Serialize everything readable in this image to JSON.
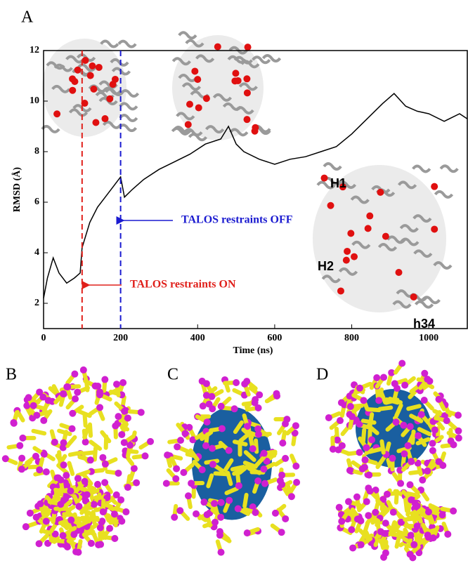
{
  "chart_data": {
    "type": "line",
    "panel_labels": [
      "A",
      "B",
      "C",
      "D"
    ],
    "xlabel": "Time   (ns)",
    "ylabel": "RMSD (Å)",
    "x": [
      0,
      10,
      25,
      40,
      60,
      80,
      95,
      100,
      120,
      140,
      160,
      180,
      200,
      210,
      230,
      260,
      300,
      340,
      380,
      420,
      460,
      480,
      500,
      520,
      560,
      600,
      640,
      680,
      720,
      760,
      800,
      840,
      880,
      910,
      940,
      970,
      1000,
      1040,
      1080,
      1100
    ],
    "values": [
      2.2,
      3.0,
      3.8,
      3.2,
      2.8,
      3.0,
      3.2,
      4.2,
      5.2,
      5.8,
      6.2,
      6.6,
      7.0,
      6.2,
      6.5,
      6.9,
      7.3,
      7.6,
      7.9,
      8.3,
      8.5,
      9.0,
      8.3,
      8.0,
      7.7,
      7.5,
      7.7,
      7.8,
      8.0,
      8.2,
      8.7,
      9.3,
      9.9,
      10.3,
      9.8,
      9.6,
      9.5,
      9.2,
      9.5,
      9.3
    ],
    "color": "#000000",
    "xlim": [
      0,
      1100
    ],
    "xticks": [
      0,
      200,
      400,
      600,
      800,
      1000
    ],
    "ylim": [
      1,
      12
    ],
    "yticks": [
      2,
      4,
      6,
      8,
      10,
      12
    ],
    "markers": [
      {
        "x": 100,
        "color": "#e0201b",
        "label": "TALOS restraints ON"
      },
      {
        "x": 200,
        "color": "#1a1ad0",
        "label": "TALOS restraints OFF"
      }
    ],
    "structure_labels": [
      "H1",
      "H2",
      "h34"
    ]
  }
}
